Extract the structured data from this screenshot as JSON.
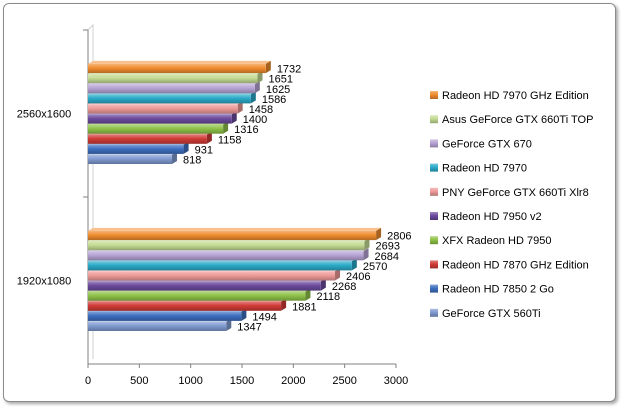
{
  "chart_data": {
    "type": "bar",
    "orientation": "horizontal",
    "categories": [
      "1920x1080",
      "2560x1600"
    ],
    "series": [
      {
        "name": "GeForce GTX 560Ti",
        "color": "#7f9ad0",
        "values": [
          1347,
          818
        ]
      },
      {
        "name": "Radeon HD 7850 2 Go",
        "color": "#3d6fc0",
        "values": [
          1494,
          931
        ]
      },
      {
        "name": "Radeon HD 7870 GHz Edition",
        "color": "#d03a36",
        "values": [
          1881,
          1158
        ]
      },
      {
        "name": "XFX Radeon HD 7950",
        "color": "#8ec148",
        "values": [
          2118,
          1316
        ]
      },
      {
        "name": "Radeon HD  7950 v2",
        "color": "#6c4a9e",
        "values": [
          2268,
          1400
        ]
      },
      {
        "name": "PNY GeForce GTX 660Ti Xlr8",
        "color": "#ee9a98",
        "values": [
          2406,
          1458
        ]
      },
      {
        "name": "Radeon HD 7970",
        "color": "#2aaac8",
        "values": [
          2570,
          1586
        ]
      },
      {
        "name": "GeForce GTX 670",
        "color": "#b5a3d4",
        "values": [
          2684,
          1625
        ]
      },
      {
        "name": "Asus GeForce GTX 660Ti TOP",
        "color": "#c4db93",
        "values": [
          2693,
          1651
        ]
      },
      {
        "name": "Radeon HD 7970 GHz Edition",
        "color": "#f08c2e",
        "values": [
          2806,
          1732
        ]
      }
    ],
    "xlim": [
      0,
      3000
    ],
    "xticks": [
      0,
      500,
      1000,
      1500,
      2000,
      2500,
      3000
    ],
    "title": "",
    "xlabel": "",
    "ylabel": "",
    "grid": false,
    "legend": "right",
    "data_labels": true
  }
}
